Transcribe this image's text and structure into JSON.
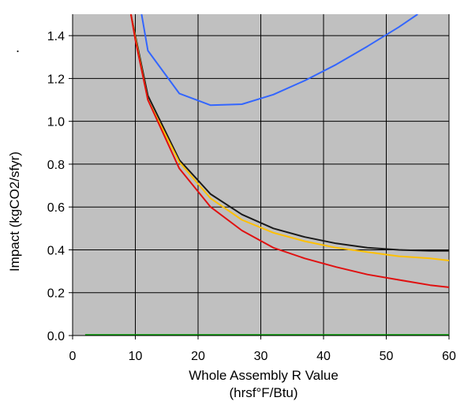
{
  "chart_data": {
    "type": "line",
    "title": "",
    "stray_mark": ".",
    "xlabel_line1": "Whole Assembly R Value",
    "xlabel_line2": "(hrsf°F/Btu)",
    "ylabel": "Impact  (kgCO2/sfyr)",
    "xlim": [
      0,
      60
    ],
    "ylim": [
      0,
      1.5
    ],
    "x_ticks": [
      0,
      10,
      20,
      30,
      40,
      50,
      60
    ],
    "x_tick_labels": [
      "0",
      "10",
      "20",
      "30",
      "40",
      "50",
      "60"
    ],
    "y_ticks": [
      0.0,
      0.2,
      0.4,
      0.6,
      0.8,
      1.0,
      1.2,
      1.4
    ],
    "y_tick_labels": [
      "0.0",
      "0.2",
      "0.4",
      "0.6",
      "0.8",
      "1.0",
      "1.2",
      "1.4"
    ],
    "grid": true,
    "plot_background": "#c0c0c0",
    "series": [
      {
        "color": "#1a1a1a",
        "points": [
          [
            9.3,
            1.5
          ],
          [
            10,
            1.4
          ],
          [
            12,
            1.12
          ],
          [
            17,
            0.82
          ],
          [
            22,
            0.66
          ],
          [
            27,
            0.565
          ],
          [
            32,
            0.5
          ],
          [
            37,
            0.46
          ],
          [
            42,
            0.43
          ],
          [
            47,
            0.41
          ],
          [
            52,
            0.4
          ],
          [
            57,
            0.395
          ],
          [
            60,
            0.395
          ]
        ]
      },
      {
        "color": "#ffc000",
        "points": [
          [
            9.3,
            1.5
          ],
          [
            10,
            1.39
          ],
          [
            12,
            1.1
          ],
          [
            17,
            0.81
          ],
          [
            22,
            0.64
          ],
          [
            27,
            0.54
          ],
          [
            32,
            0.48
          ],
          [
            37,
            0.44
          ],
          [
            42,
            0.41
          ],
          [
            47,
            0.39
          ],
          [
            52,
            0.37
          ],
          [
            57,
            0.36
          ],
          [
            60,
            0.35
          ]
        ]
      },
      {
        "color": "#e01010",
        "points": [
          [
            9.3,
            1.5
          ],
          [
            10,
            1.38
          ],
          [
            12,
            1.1
          ],
          [
            17,
            0.78
          ],
          [
            22,
            0.6
          ],
          [
            27,
            0.49
          ],
          [
            32,
            0.41
          ],
          [
            37,
            0.36
          ],
          [
            42,
            0.32
          ],
          [
            47,
            0.285
          ],
          [
            52,
            0.26
          ],
          [
            57,
            0.235
          ],
          [
            60,
            0.225
          ]
        ]
      },
      {
        "color": "#3366ff",
        "points": [
          [
            11,
            1.5
          ],
          [
            12,
            1.33
          ],
          [
            17,
            1.13
          ],
          [
            22,
            1.075
          ],
          [
            27,
            1.08
          ],
          [
            32,
            1.125
          ],
          [
            37,
            1.19
          ],
          [
            42,
            1.265
          ],
          [
            47,
            1.35
          ],
          [
            52,
            1.44
          ],
          [
            55,
            1.5
          ]
        ]
      },
      {
        "color": "#00a000",
        "points": [
          [
            2,
            0.003
          ],
          [
            60,
            0.003
          ]
        ]
      }
    ]
  }
}
